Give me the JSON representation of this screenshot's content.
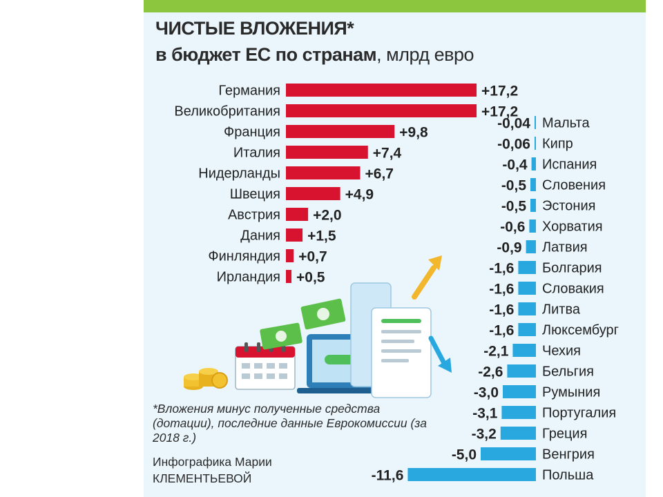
{
  "title": {
    "main": "ЧИСТЫЕ ВЛОЖЕНИЯ*",
    "sub_bold": "в бюджет ЕС по странам",
    "sub_rest": ", млрд евро"
  },
  "footnote": "*Вложения минус полученные средства (дотации), последние данные Еврокомиссии (за 2018 г.)",
  "credit_line1": "Инфографика Марии",
  "credit_line2": "КЛЕМЕНТЬЕВОЙ",
  "colors": {
    "positive": "#d7132f",
    "negative": "#29a8e0",
    "background": "#eaf6fc",
    "top_strip": "#8cc63f"
  },
  "chart_data": [
    {
      "type": "bar",
      "orientation": "horizontal",
      "categories": [
        "Германия",
        "Великобритания",
        "Франция",
        "Италия",
        "Нидерланды",
        "Швеция",
        "Австрия",
        "Дания",
        "Финляндия",
        "Ирландия"
      ],
      "values": [
        17.2,
        17.2,
        9.8,
        7.4,
        6.7,
        4.9,
        2.0,
        1.5,
        0.7,
        0.5
      ],
      "labels": [
        "+17,2",
        "+17,2",
        "+9,8",
        "+7,4",
        "+6,7",
        "+4,9",
        "+2,0",
        "+1,5",
        "+0,7",
        "+0,5"
      ]
    },
    {
      "type": "bar",
      "orientation": "horizontal",
      "categories": [
        "Мальта",
        "Кипр",
        "Испания",
        "Словения",
        "Эстония",
        "Хорватия",
        "Латвия",
        "Болгария",
        "Словакия",
        "Литва",
        "Люксембург",
        "Чехия",
        "Бельгия",
        "Румыния",
        "Португалия",
        "Греция",
        "Венгрия",
        "Польша"
      ],
      "values": [
        -0.04,
        -0.06,
        -0.4,
        -0.5,
        -0.5,
        -0.6,
        -0.9,
        -1.6,
        -1.6,
        -1.6,
        -1.6,
        -2.1,
        -2.6,
        -3.0,
        -3.1,
        -3.2,
        -5.0,
        -11.6
      ],
      "labels": [
        "-0,04",
        "-0,06",
        "-0,4",
        "-0,5",
        "-0,5",
        "-0,6",
        "-0,9",
        "-1,6",
        "-1,6",
        "-1,6",
        "-1,6",
        "-2,1",
        "-2,6",
        "-3,0",
        "-3,1",
        "-3,2",
        "-5,0",
        "-11,6"
      ]
    }
  ]
}
